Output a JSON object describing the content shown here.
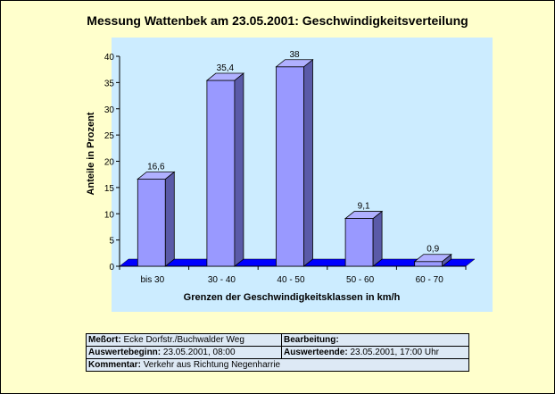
{
  "title": "Messung Wattenbek am 23.05.2001: Geschwindigkeitsverteilung",
  "chart_data": {
    "type": "bar",
    "categories": [
      "bis 30",
      "30 - 40",
      "40 - 50",
      "50 - 60",
      "60 - 70"
    ],
    "values": [
      16.6,
      35.4,
      38,
      9.1,
      0.9
    ],
    "value_labels": [
      "16,6",
      "35,4",
      "38",
      "9,1",
      "0,9"
    ],
    "xlabel": "Grenzen der Geschwindigkeitsklassen in km/h",
    "ylabel": "Anteile in Prozent",
    "ylim": [
      0,
      40
    ],
    "yticks": [
      "0",
      "5",
      "10",
      "15",
      "20",
      "25",
      "30",
      "35",
      "40"
    ],
    "grid": false,
    "legend": "none",
    "colors": {
      "plot_bg": "#ccecff",
      "bar_front": "#9999ff",
      "bar_side": "#5a5aa8",
      "bar_top": "#b0b0ff",
      "floor": "#0000ff",
      "page_bg": "#ffffcc"
    }
  },
  "info": {
    "messort_label": "Meßort:",
    "messort_value": "Ecke  Dorfstr./Buchwalder Weg",
    "bearbeitung_label": "Bearbeitung:",
    "bearbeitung_value": "",
    "beginn_label": "Auswertebeginn:",
    "beginn_value": "23.05.2001, 08:00",
    "ende_label": "Auswerteende:",
    "ende_value": "23.05.2001, 17:00 Uhr",
    "kommentar_label": "Kommentar:",
    "kommentar_value": "Verkehr aus Richtung Negenharrie"
  }
}
